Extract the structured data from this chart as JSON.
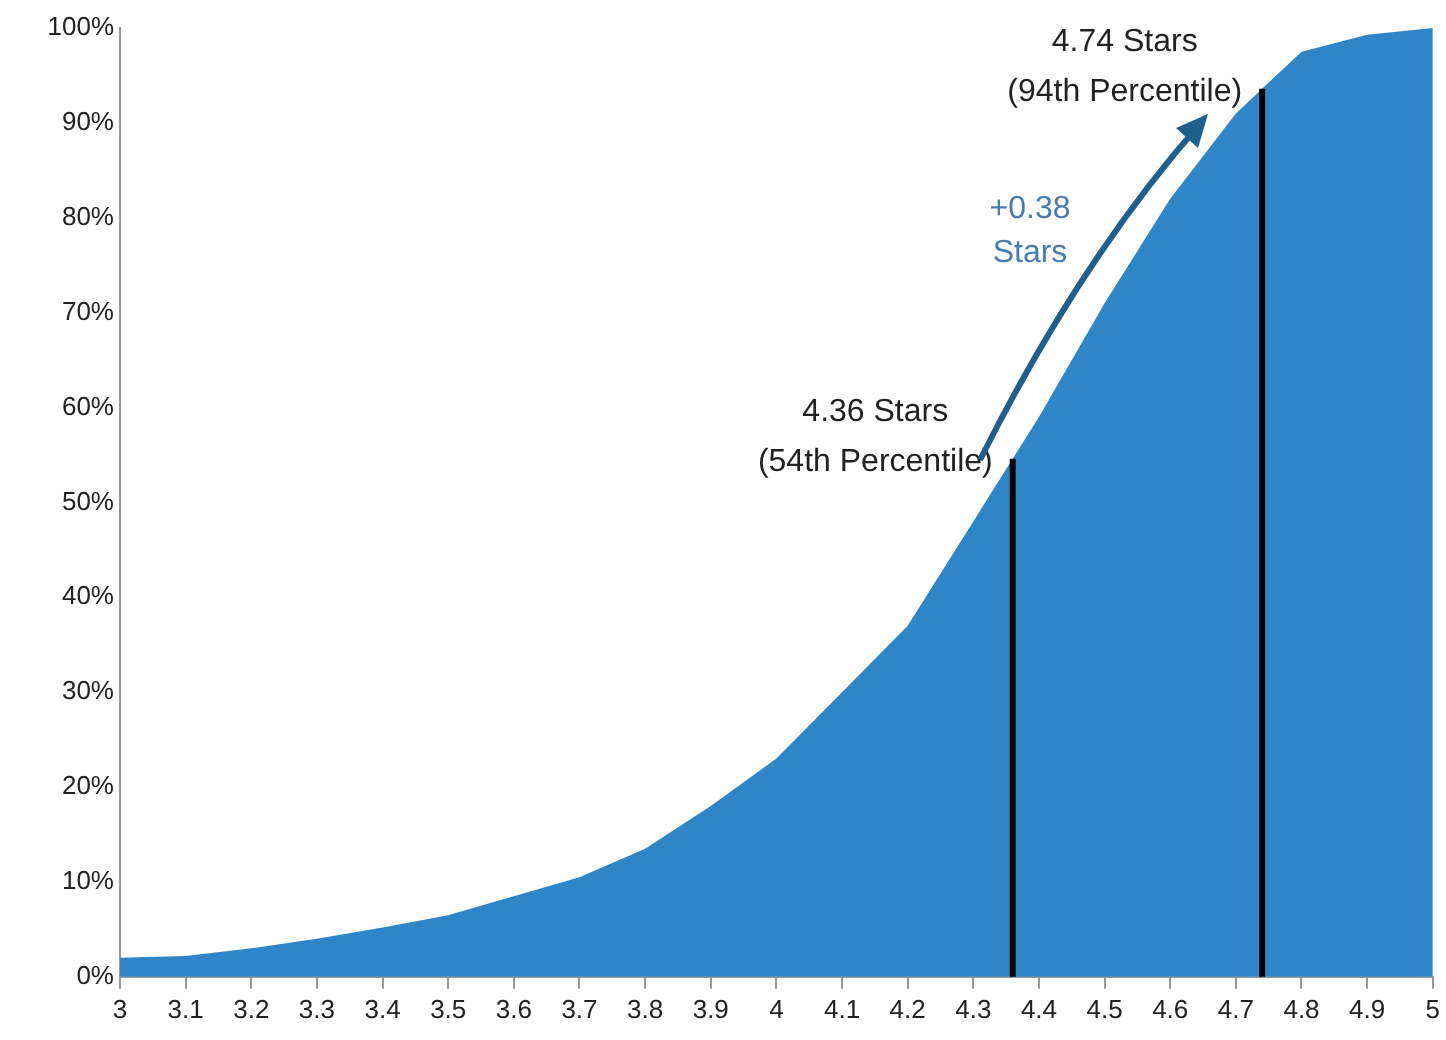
{
  "chart_data": {
    "type": "area",
    "x": [
      3,
      3.1,
      3.2,
      3.3,
      3.4,
      3.5,
      3.6,
      3.7,
      3.8,
      3.9,
      4,
      4.1,
      4.2,
      4.3,
      4.4,
      4.5,
      4.6,
      4.7,
      4.8,
      4.9,
      5
    ],
    "series": [
      {
        "color": "#2e86c8",
        "values": [
          2,
          2.2,
          3,
          4,
          5.2,
          6.5,
          8.5,
          10.5,
          13.5,
          18,
          23,
          30,
          37,
          48,
          59,
          71,
          82,
          91,
          97.5,
          99.3,
          100
        ]
      }
    ],
    "xlim": [
      3,
      5
    ],
    "xticks": [
      3,
      3.1,
      3.2,
      3.3,
      3.4,
      3.5,
      3.6,
      3.7,
      3.8,
      3.9,
      4,
      4.1,
      4.2,
      4.3,
      4.4,
      4.5,
      4.6,
      4.7,
      4.8,
      4.9,
      5
    ],
    "ylim": [
      0,
      100
    ],
    "yticks": [
      {
        "value": 0,
        "label": "0%"
      },
      {
        "value": 10,
        "label": "10%"
      },
      {
        "value": 20,
        "label": "20%"
      },
      {
        "value": 30,
        "label": "30%"
      },
      {
        "value": 40,
        "label": "40%"
      },
      {
        "value": 50,
        "label": "50%"
      },
      {
        "value": 60,
        "label": "60%"
      },
      {
        "value": 70,
        "label": "70%"
      },
      {
        "value": 80,
        "label": "80%"
      },
      {
        "value": 90,
        "label": "90%"
      },
      {
        "value": 100,
        "label": "100%"
      }
    ],
    "ref_lines": [
      {
        "axis": "x",
        "value": 4.36,
        "label": "4.36 Stars\n(54th Percentile)",
        "color": "#000000"
      },
      {
        "axis": "x",
        "value": 4.74,
        "label": "4.74 Stars\n(94th Percentile)",
        "color": "#000000"
      }
    ],
    "annotations": [
      "+0.38\nStars"
    ],
    "grid": false,
    "legend": false
  }
}
